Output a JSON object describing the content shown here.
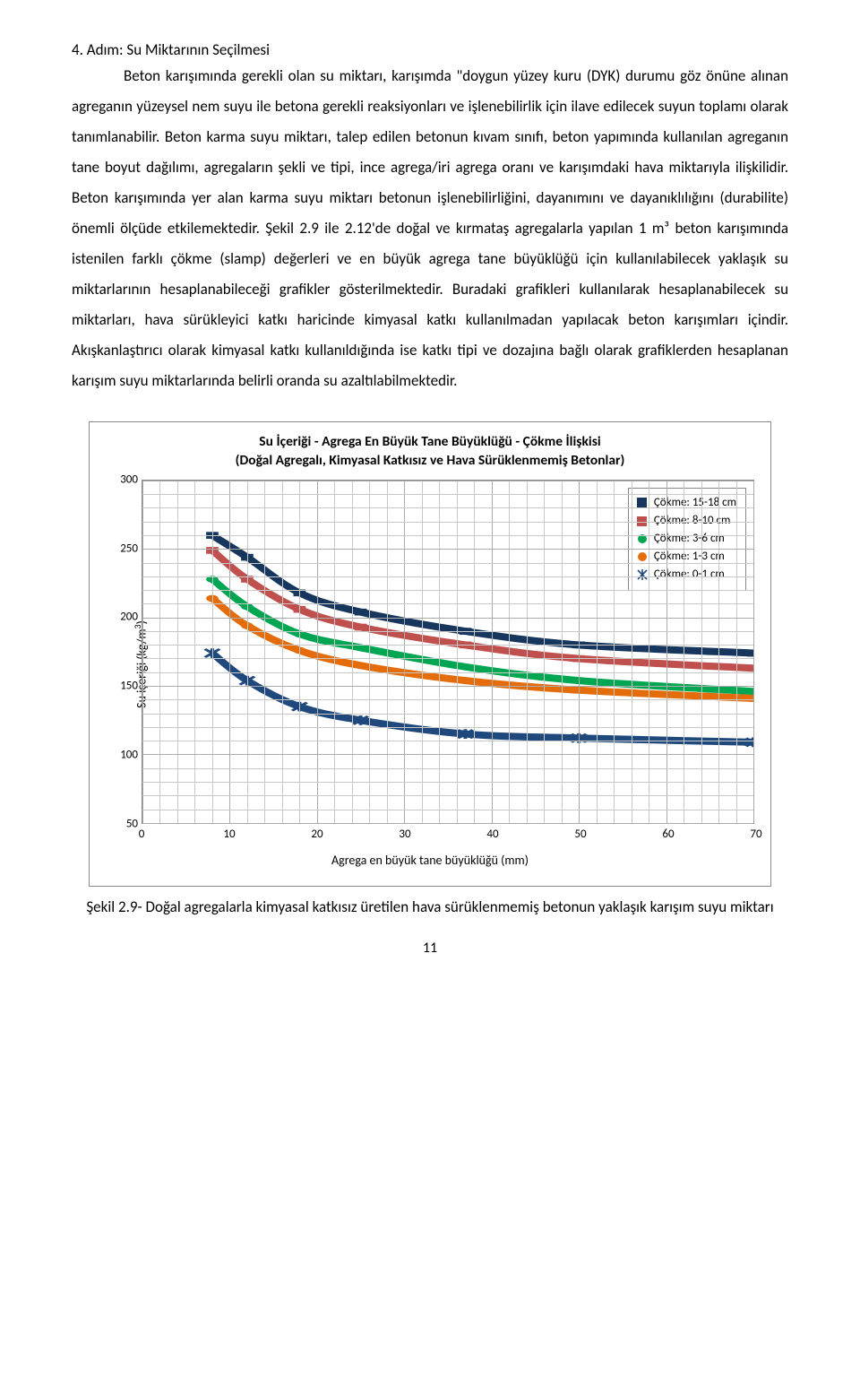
{
  "step_title": "4. Adım: Su Miktarının Seçilmesi",
  "body": "Beton karışımında gerekli olan su miktarı, karışımda \"doygun yüzey kuru (DYK) durumu göz önüne alınan agreganın yüzeysel nem suyu ile betona gerekli reaksiyonları ve işlenebilirlik için ilave edilecek suyun toplamı olarak tanımlanabilir. Beton karma suyu miktarı, talep edilen betonun kıvam sınıfı, beton yapımında kullanılan agreganın tane boyut dağılımı, agregaların şekli ve tipi, ince agrega/iri agrega oranı ve karışımdaki hava miktarıyla ilişkilidir. Beton karışımında yer alan karma suyu miktarı betonun işlenebilirliğini, dayanımını ve dayanıklılığını (durabilite) önemli ölçüde etkilemektedir. Şekil 2.9 ile 2.12'de doğal ve kırmataş agregalarla yapılan 1 m³ beton karışımında istenilen farklı çökme (slamp) değerleri ve en büyük agrega tane büyüklüğü için kullanılabilecek yaklaşık su miktarlarının hesaplanabileceği grafikler gösterilmektedir. Buradaki grafikleri kullanılarak hesaplanabilecek su miktarları, hava sürükleyici katkı haricinde kimyasal katkı kullanılmadan yapılacak beton karışımları içindir. Akışkanlaştırıcı olarak kimyasal katkı kullanıldığında ise katkı tipi ve dozajına bağlı olarak grafiklerden hesaplanan karışım suyu miktarlarında belirli oranda su azaltılabilmektedir.",
  "chart": {
    "title_l1": "Su İçeriği - Agrega En Büyük Tane Büyüklüğü - Çökme İlişkisi",
    "title_l2": "(Doğal Agregalı, Kimyasal Katkısız ve Hava Sürüklenmemiş Betonlar)",
    "ylabel": "Su içeriği (kg/m³)",
    "xlabel": "Agrega en büyük tane büyüklüğü (mm)",
    "xlim": [
      0,
      70
    ],
    "ylim": [
      50,
      300
    ],
    "xticks": [
      0,
      10,
      20,
      30,
      40,
      50,
      60,
      70
    ],
    "yticks": [
      50,
      100,
      150,
      200,
      250,
      300
    ],
    "grid_color": "#c8c8c8",
    "legend": [
      {
        "label": "Çökme: 15-18 cm",
        "color": "#17365d",
        "marker": "square-fill"
      },
      {
        "label": "Çökme: 8-10 cm",
        "color": "#c0504d",
        "marker": "square-fill"
      },
      {
        "label": "Çökme: 3-6 cm",
        "color": "#00a651",
        "marker": "circle-fill"
      },
      {
        "label": "Çökme: 1-3 cm",
        "color": "#e46c0a",
        "marker": "circle-fill"
      },
      {
        "label": "Çökme: 0-1 cm",
        "color": "#1f497d",
        "marker": "asterisk"
      }
    ],
    "series": [
      {
        "key": "15-18",
        "color": "#17365d",
        "marker": "square-fill",
        "pts": [
          [
            8,
            260
          ],
          [
            12,
            244
          ],
          [
            18,
            218
          ],
          [
            25,
            204
          ],
          [
            37,
            190
          ],
          [
            50,
            180
          ],
          [
            70,
            174
          ]
        ]
      },
      {
        "key": "8-10",
        "color": "#c0504d",
        "marker": "square-fill",
        "pts": [
          [
            8,
            249
          ],
          [
            12,
            228
          ],
          [
            18,
            206
          ],
          [
            25,
            193
          ],
          [
            37,
            180
          ],
          [
            50,
            170
          ],
          [
            70,
            163
          ]
        ]
      },
      {
        "key": "3-6",
        "color": "#00a651",
        "marker": "circle-fill",
        "pts": [
          [
            8,
            228
          ],
          [
            12,
            208
          ],
          [
            18,
            188
          ],
          [
            25,
            178
          ],
          [
            37,
            164
          ],
          [
            50,
            154
          ],
          [
            70,
            146
          ]
        ]
      },
      {
        "key": "1-3",
        "color": "#e46c0a",
        "marker": "circle-fill",
        "pts": [
          [
            8,
            214
          ],
          [
            12,
            194
          ],
          [
            18,
            176
          ],
          [
            25,
            165
          ],
          [
            37,
            154
          ],
          [
            50,
            147
          ],
          [
            70,
            141
          ]
        ]
      },
      {
        "key": "0-1",
        "color": "#1f497d",
        "marker": "asterisk",
        "pts": [
          [
            8,
            174
          ],
          [
            12,
            154
          ],
          [
            18,
            135
          ],
          [
            25,
            125
          ],
          [
            37,
            115
          ],
          [
            50,
            112
          ],
          [
            70,
            109
          ]
        ]
      }
    ]
  },
  "caption": "Şekil 2.9- Doğal agregalarla kimyasal katkısız üretilen hava sürüklenmemiş betonun yaklaşık karışım suyu miktarı",
  "pagenum": "11"
}
